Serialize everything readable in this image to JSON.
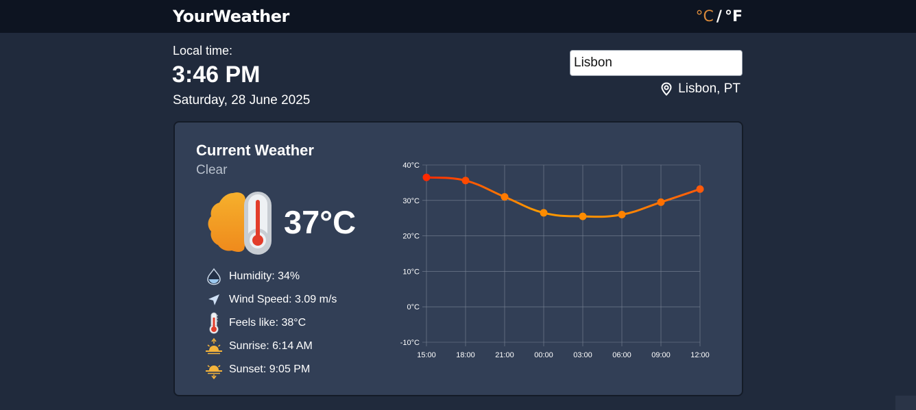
{
  "app": {
    "title": "YourWeather"
  },
  "units": {
    "celsius": "°C",
    "separator": "/",
    "fahrenheit": "°F"
  },
  "local": {
    "label": "Local time:",
    "time": "3:46 PM",
    "date": "Saturday, 28 June 2025"
  },
  "search": {
    "value": "Lisbon",
    "location": "Lisbon, PT"
  },
  "current": {
    "title": "Current Weather",
    "description": "Clear",
    "temperature": "37°C",
    "icon": "hot-sun-thermometer-icon",
    "details": [
      {
        "icon": "humidity-drop-icon",
        "text": "Humidity: 34%"
      },
      {
        "icon": "wind-arrow-icon",
        "text": "Wind Speed: 3.09 m/s"
      },
      {
        "icon": "thermometer-icon",
        "text": "Feels like: 38°C"
      },
      {
        "icon": "sunrise-icon",
        "text": "Sunrise: 6:14 AM"
      },
      {
        "icon": "sunset-icon",
        "text": "Sunset: 9:05 PM"
      }
    ]
  },
  "colors": {
    "accent": "#d9893a",
    "line_start": "#ff2a00",
    "line_end": "#ff9a00",
    "card": "#323f56",
    "background": "#202a3c"
  },
  "chart_data": {
    "type": "line",
    "categories": [
      "15:00",
      "18:00",
      "21:00",
      "00:00",
      "03:00",
      "06:00",
      "09:00",
      "12:00"
    ],
    "series": [
      {
        "values": [
          36.5,
          35.6,
          31.0,
          26.5,
          25.5,
          26.0,
          29.5,
          33.2
        ]
      }
    ],
    "ylim": [
      -10,
      40
    ],
    "y_ticks": [
      "40°C",
      "30°C",
      "20°C",
      "10°C",
      "0°C",
      "-10°C"
    ],
    "grid": true
  }
}
